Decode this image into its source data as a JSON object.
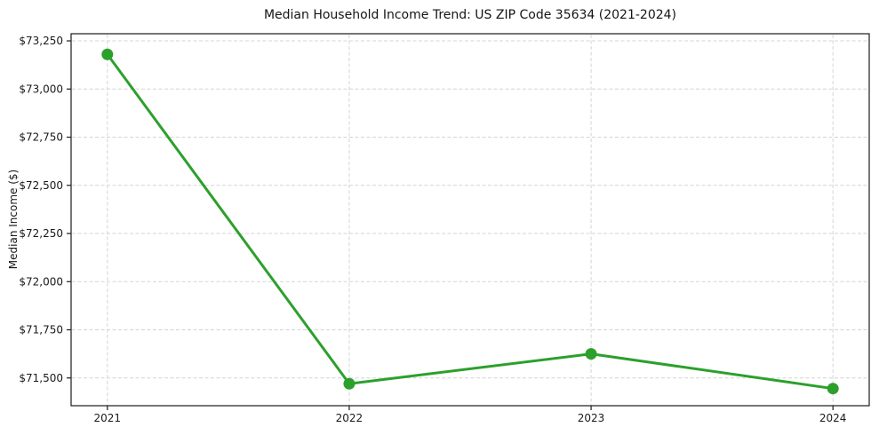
{
  "chart_data": {
    "type": "line",
    "title": "Median Household Income Trend: US ZIP Code 35634 (2021-2024)",
    "xlabel": "",
    "ylabel": "Median Income ($)",
    "x": [
      2021,
      2022,
      2023,
      2024
    ],
    "x_labels": [
      "2021",
      "2022",
      "2023",
      "2024"
    ],
    "series": [
      {
        "name": "Median Household Income",
        "values": [
          73180,
          71470,
          71625,
          71445
        ]
      }
    ],
    "xlim": [
      2020.85,
      2024.15
    ],
    "ylim": [
      71356,
      73287
    ],
    "yticks": [
      {
        "value": 71500,
        "label": "$71,500"
      },
      {
        "value": 71750,
        "label": "$71,750"
      },
      {
        "value": 72000,
        "label": "$72,000"
      },
      {
        "value": 72250,
        "label": "$72,250"
      },
      {
        "value": 72500,
        "label": "$72,500"
      },
      {
        "value": 72750,
        "label": "$72,750"
      },
      {
        "value": 73000,
        "label": "$73,000"
      },
      {
        "value": 73250,
        "label": "$73,250"
      }
    ],
    "grid": true,
    "grid_style": "dashed",
    "legend": "none",
    "line_color": "#2ca02c",
    "marker": "circle",
    "grid_color": "#d4d4d4",
    "axis_color": "#1a1a1a",
    "text_color": "#1a1a1a",
    "background": "#ffffff"
  }
}
